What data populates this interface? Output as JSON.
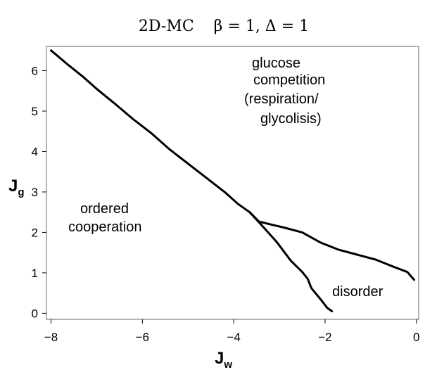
{
  "chart_data": {
    "type": "line",
    "title": "2D-MC    β = 1, Δ = 1",
    "xlabel": "J",
    "xlabel_sub": "w",
    "ylabel": "J",
    "ylabel_sub": "g",
    "xlim": [
      -8.1,
      0.05
    ],
    "ylim": [
      -0.15,
      6.6
    ],
    "x_ticks": [
      -8,
      -6,
      -4,
      -2,
      0
    ],
    "x_tick_labels": [
      "−8",
      "−6",
      "−4",
      "−2",
      "0"
    ],
    "y_ticks": [
      0,
      1,
      2,
      3,
      4,
      5,
      6
    ],
    "y_tick_labels": [
      "0",
      "1",
      "2",
      "3",
      "4",
      "5",
      "6"
    ],
    "grid": false,
    "series": [
      {
        "id": "boundary-ordered-competition",
        "points": [
          [
            -8.0,
            6.5
          ],
          [
            -7.6,
            6.12
          ],
          [
            -7.3,
            5.85
          ],
          [
            -7.0,
            5.55
          ],
          [
            -6.6,
            5.18
          ],
          [
            -6.2,
            4.8
          ],
          [
            -5.8,
            4.45
          ],
          [
            -5.4,
            4.05
          ],
          [
            -5.0,
            3.7
          ],
          [
            -4.6,
            3.35
          ],
          [
            -4.2,
            3.0
          ],
          [
            -3.9,
            2.7
          ],
          [
            -3.65,
            2.5
          ]
        ]
      },
      {
        "id": "boundary-competition-disorder",
        "points": [
          [
            -3.65,
            2.5
          ],
          [
            -3.45,
            2.27
          ],
          [
            -3.2,
            2.2
          ],
          [
            -2.9,
            2.12
          ],
          [
            -2.5,
            2.0
          ],
          [
            -2.1,
            1.75
          ],
          [
            -1.7,
            1.57
          ],
          [
            -1.3,
            1.45
          ],
          [
            -0.9,
            1.33
          ],
          [
            -0.5,
            1.15
          ],
          [
            -0.2,
            1.02
          ],
          [
            -0.05,
            0.83
          ]
        ]
      },
      {
        "id": "boundary-ordered-disorder",
        "points": [
          [
            -3.65,
            2.5
          ],
          [
            -3.35,
            2.13
          ],
          [
            -3.05,
            1.75
          ],
          [
            -2.75,
            1.3
          ],
          [
            -2.5,
            1.02
          ],
          [
            -2.38,
            0.85
          ],
          [
            -2.3,
            0.62
          ],
          [
            -2.1,
            0.35
          ],
          [
            -1.95,
            0.13
          ],
          [
            -1.85,
            0.05
          ]
        ]
      }
    ],
    "annotations": {
      "competition": [
        "glucose",
        "competition",
        "(respiration/",
        "glycolisis)"
      ],
      "ordered": [
        "ordered",
        "cooperation"
      ],
      "disorder": [
        "disorder"
      ]
    }
  }
}
